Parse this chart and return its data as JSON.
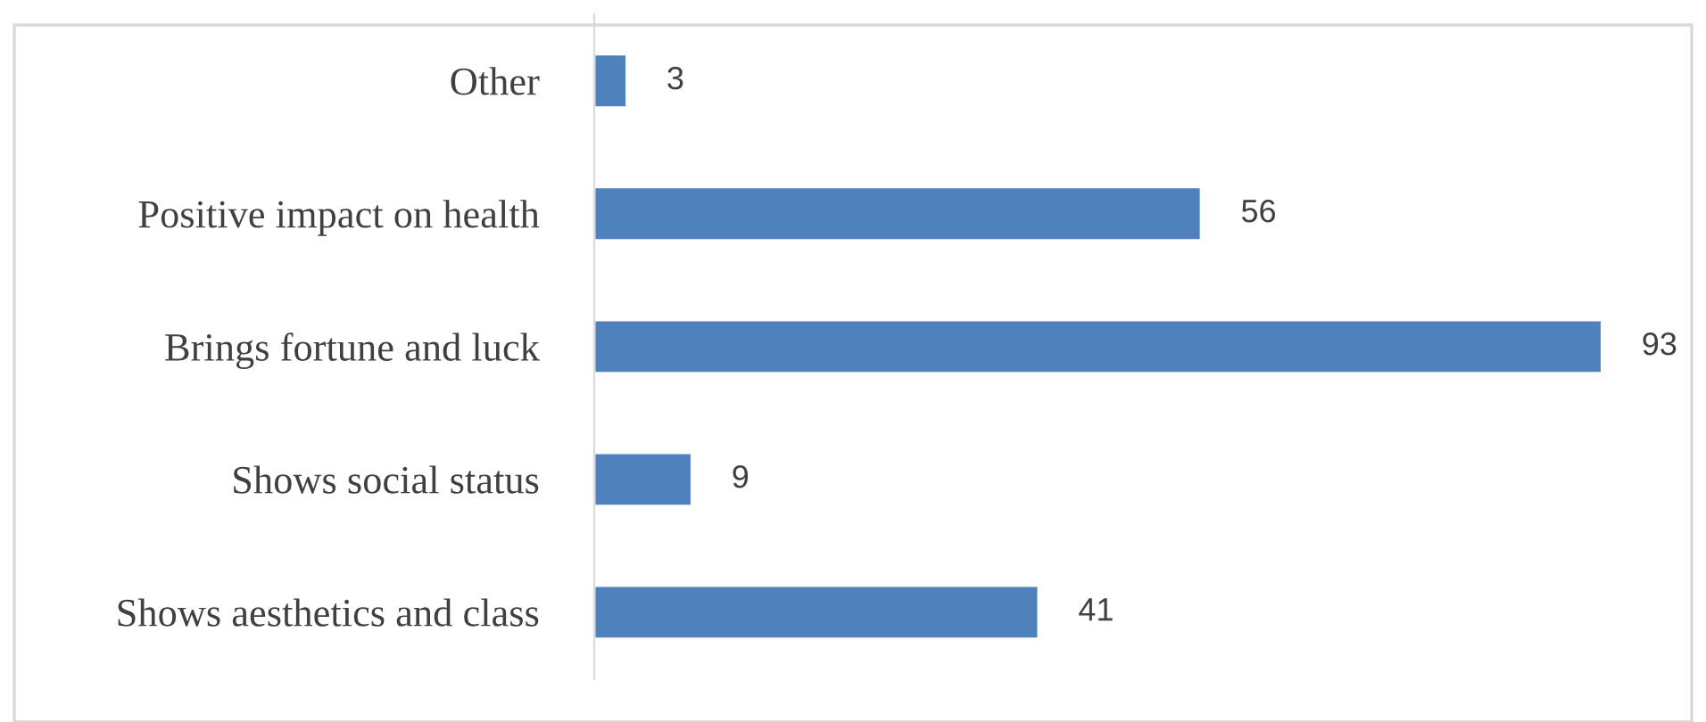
{
  "chart_data": {
    "type": "bar",
    "orientation": "horizontal",
    "categories": [
      "Other",
      "Positive impact on health",
      "Brings fortune and luck",
      "Shows social status",
      "Shows aesthetics and class"
    ],
    "values": [
      3,
      56,
      93,
      9,
      41
    ],
    "color": "#4f81bd",
    "data_labels": true,
    "grid": false,
    "legend": false,
    "tick_labels": "y"
  }
}
